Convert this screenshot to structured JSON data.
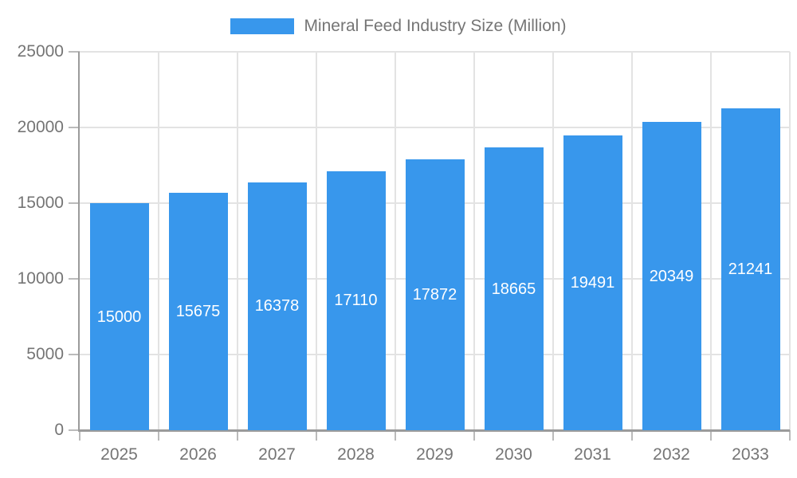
{
  "legend": {
    "label": "Mineral Feed Industry Size (Million)"
  },
  "colors": {
    "bar": "#3897EC",
    "grid": "#E3E3E3",
    "axis": "#9B9B9B",
    "tick": "#BBBBBB",
    "axis_label": "#757575",
    "value_label": "#FFFFFF",
    "background": "#FFFFFF"
  },
  "chart_data": {
    "type": "bar",
    "title": "",
    "series_name": "Mineral Feed Industry Size (Million)",
    "categories": [
      "2025",
      "2026",
      "2027",
      "2028",
      "2029",
      "2030",
      "2031",
      "2032",
      "2033"
    ],
    "values": [
      15000,
      15675,
      16378,
      17110,
      17872,
      18665,
      19491,
      20349,
      21241
    ],
    "xlabel": "",
    "ylabel": "",
    "ylim": [
      0,
      25000
    ],
    "ytick_step": 5000,
    "yticks": [
      "0",
      "5000",
      "10000",
      "15000",
      "20000",
      "25000"
    ],
    "grid": true,
    "legend_position": "top",
    "value_labels": "inside-center-white"
  }
}
